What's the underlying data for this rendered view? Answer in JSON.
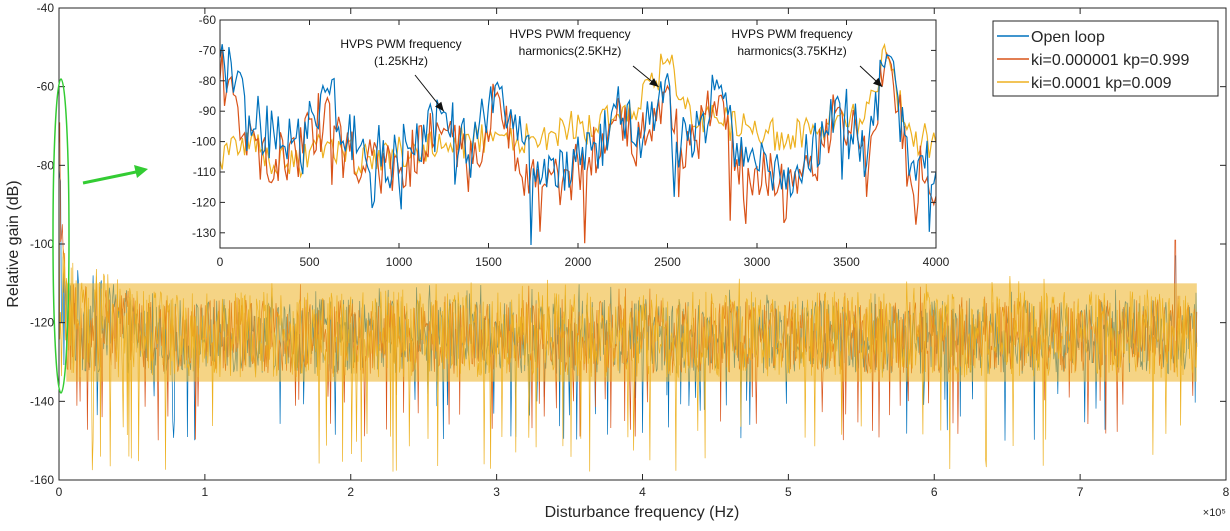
{
  "chart_data": [
    {
      "type": "line",
      "title": "",
      "xlabel": "Disturbance frequency (Hz)",
      "ylabel": "Relative gain (dB)",
      "x_multiplier_label": "×10⁵",
      "xlim": [
        0,
        8
      ],
      "ylim": [
        -160,
        -40
      ],
      "x_ticks": [
        "0",
        "1",
        "2",
        "3",
        "4",
        "5",
        "6",
        "7",
        "8"
      ],
      "y_ticks": [
        "-40",
        "-60",
        "-80",
        "-100",
        "-120",
        "-140",
        "-160"
      ],
      "grid": false,
      "legend_position": "top-right",
      "series": [
        {
          "name": "Open loop",
          "color": "#0072bd",
          "noise_band": [
            -133,
            -114
          ],
          "peak_dips": [
            -110,
            -150
          ]
        },
        {
          "name": "ki=0.000001 kp=0.999",
          "color": "#d95319",
          "noise_band": [
            -133,
            -114
          ],
          "peak_dips": [
            -110,
            -150
          ]
        },
        {
          "name": "ki=0.0001 kp=0.009",
          "color": "#edb120",
          "noise_band": [
            -134,
            -112
          ],
          "peak_dips": [
            -108,
            -158
          ]
        }
      ],
      "features": {
        "low_freq_peak_region_x": [
          0,
          0.05
        ],
        "low_freq_peak_y": -60,
        "spike_near_x": 7.65,
        "spike_y": -103
      }
    },
    {
      "type": "line",
      "title": "",
      "xlabel": "",
      "ylabel": "",
      "xlim": [
        0,
        4000
      ],
      "ylim": [
        -135,
        -60
      ],
      "x_ticks": [
        "0",
        "500",
        "1000",
        "1500",
        "2000",
        "2500",
        "3000",
        "3500",
        "4000"
      ],
      "y_ticks": [
        "-60",
        "-70",
        "-80",
        "-90",
        "-100",
        "-110",
        "-120",
        "-130"
      ],
      "grid": false,
      "series": [
        {
          "name": "Open loop",
          "color": "#0072bd",
          "points": [
            [
              0,
              -68
            ],
            [
              60,
              -78
            ],
            [
              150,
              -92
            ],
            [
              300,
              -98
            ],
            [
              450,
              -100
            ],
            [
              600,
              -82
            ],
            [
              700,
              -100
            ],
            [
              900,
              -103
            ],
            [
              1000,
              -106
            ],
            [
              1100,
              -98
            ],
            [
              1250,
              -90
            ],
            [
              1400,
              -104
            ],
            [
              1550,
              -80
            ],
            [
              1700,
              -104
            ],
            [
              1900,
              -106
            ],
            [
              2000,
              -108
            ],
            [
              2100,
              -104
            ],
            [
              2200,
              -88
            ],
            [
              2350,
              -100
            ],
            [
              2500,
              -78
            ],
            [
              2600,
              -103
            ],
            [
              2800,
              -82
            ],
            [
              2900,
              -106
            ],
            [
              3100,
              -110
            ],
            [
              3300,
              -106
            ],
            [
              3450,
              -85
            ],
            [
              3600,
              -102
            ],
            [
              3730,
              -70
            ],
            [
              3850,
              -108
            ],
            [
              4000,
              -110
            ]
          ]
        },
        {
          "name": "ki=0.000001 kp=0.999",
          "color": "#d95319",
          "points": [
            [
              0,
              -75
            ],
            [
              60,
              -84
            ],
            [
              150,
              -100
            ],
            [
              300,
              -105
            ],
            [
              450,
              -104
            ],
            [
              600,
              -86
            ],
            [
              700,
              -106
            ],
            [
              900,
              -108
            ],
            [
              1000,
              -110
            ],
            [
              1100,
              -104
            ],
            [
              1250,
              -96
            ],
            [
              1400,
              -108
            ],
            [
              1550,
              -84
            ],
            [
              1700,
              -108
            ],
            [
              1900,
              -111
            ],
            [
              2000,
              -110
            ],
            [
              2100,
              -104
            ],
            [
              2200,
              -92
            ],
            [
              2350,
              -102
            ],
            [
              2500,
              -81
            ],
            [
              2600,
              -106
            ],
            [
              2800,
              -84
            ],
            [
              2900,
              -110
            ],
            [
              3100,
              -112
            ],
            [
              3300,
              -108
            ],
            [
              3450,
              -88
            ],
            [
              3600,
              -104
            ],
            [
              3730,
              -70
            ],
            [
              3850,
              -110
            ],
            [
              4000,
              -112
            ]
          ]
        },
        {
          "name": "ki=0.0001 kp=0.009",
          "color": "#edb120",
          "points": [
            [
              0,
              -104
            ],
            [
              150,
              -102
            ],
            [
              300,
              -105
            ],
            [
              450,
              -106
            ],
            [
              600,
              -100
            ],
            [
              800,
              -106
            ],
            [
              1000,
              -104
            ],
            [
              1200,
              -102
            ],
            [
              1400,
              -100
            ],
            [
              1550,
              -97
            ],
            [
              1700,
              -98
            ],
            [
              1900,
              -96
            ],
            [
              2100,
              -95
            ],
            [
              2300,
              -90
            ],
            [
              2500,
              -73
            ],
            [
              2600,
              -90
            ],
            [
              2800,
              -94
            ],
            [
              3000,
              -96
            ],
            [
              3200,
              -98
            ],
            [
              3450,
              -92
            ],
            [
              3600,
              -92
            ],
            [
              3730,
              -71
            ],
            [
              3850,
              -98
            ],
            [
              4000,
              -100
            ]
          ]
        }
      ],
      "annotations": [
        {
          "text_lines": [
            "HVPS PWM frequency",
            "(1.25KHz)"
          ],
          "points_to_x": 1250,
          "points_to_y": -90
        },
        {
          "text_lines": [
            "HVPS PWM frequency",
            "harmonics(2.5KHz)"
          ],
          "points_to_x": 2450,
          "points_to_y": -82
        },
        {
          "text_lines": [
            "HVPS PWM frequency",
            "harmonics(3.75KHz)"
          ],
          "points_to_x": 3700,
          "points_to_y": -82
        }
      ]
    }
  ],
  "colors": {
    "highlight_ellipse": "#33cc33",
    "arrow": "#33cc33"
  }
}
